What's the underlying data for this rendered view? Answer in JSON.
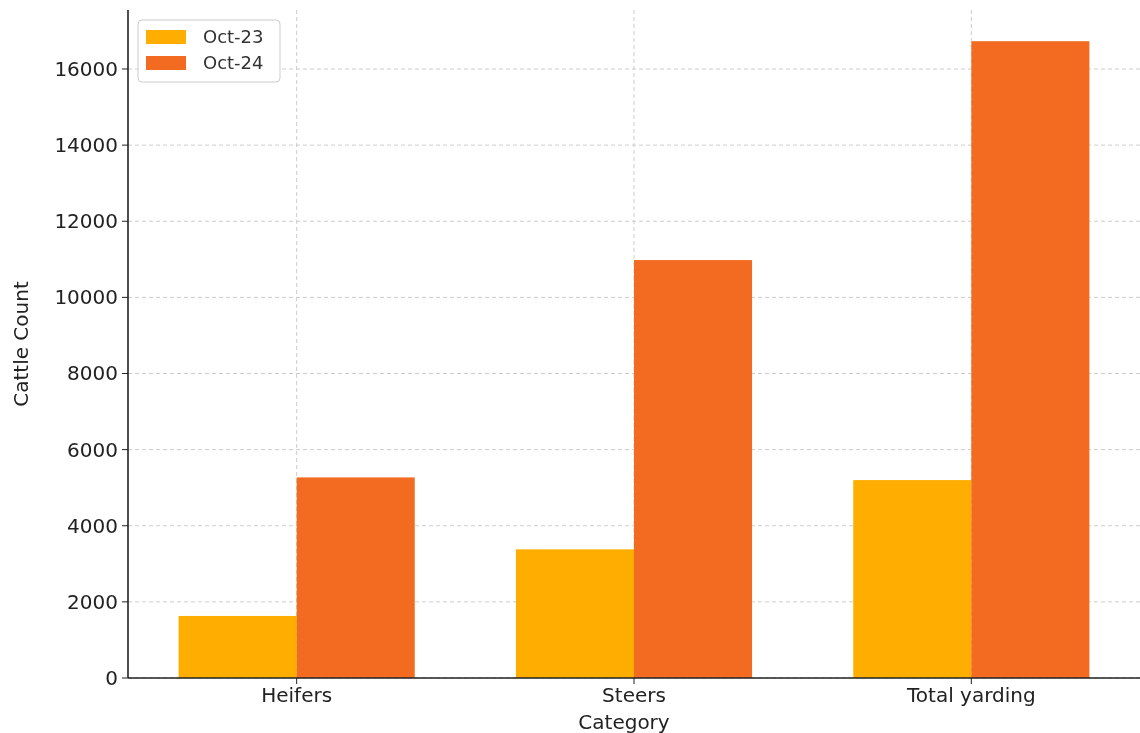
{
  "chart_data": {
    "type": "bar",
    "xlabel": "Category",
    "ylabel": "Cattle Count",
    "categories": [
      "Heifers",
      "Steers",
      "Total yarding"
    ],
    "series": [
      {
        "name": "Oct-23",
        "color": "#ffae00",
        "values": [
          1630,
          3380,
          5200
        ]
      },
      {
        "name": "Oct-24",
        "color": "#f26b21",
        "values": [
          5270,
          10980,
          16730
        ]
      }
    ],
    "ylim": [
      0,
      17550
    ],
    "yticks": [
      0,
      2000,
      4000,
      6000,
      8000,
      10000,
      12000,
      14000,
      16000
    ],
    "grid": true,
    "legend": "top left"
  }
}
